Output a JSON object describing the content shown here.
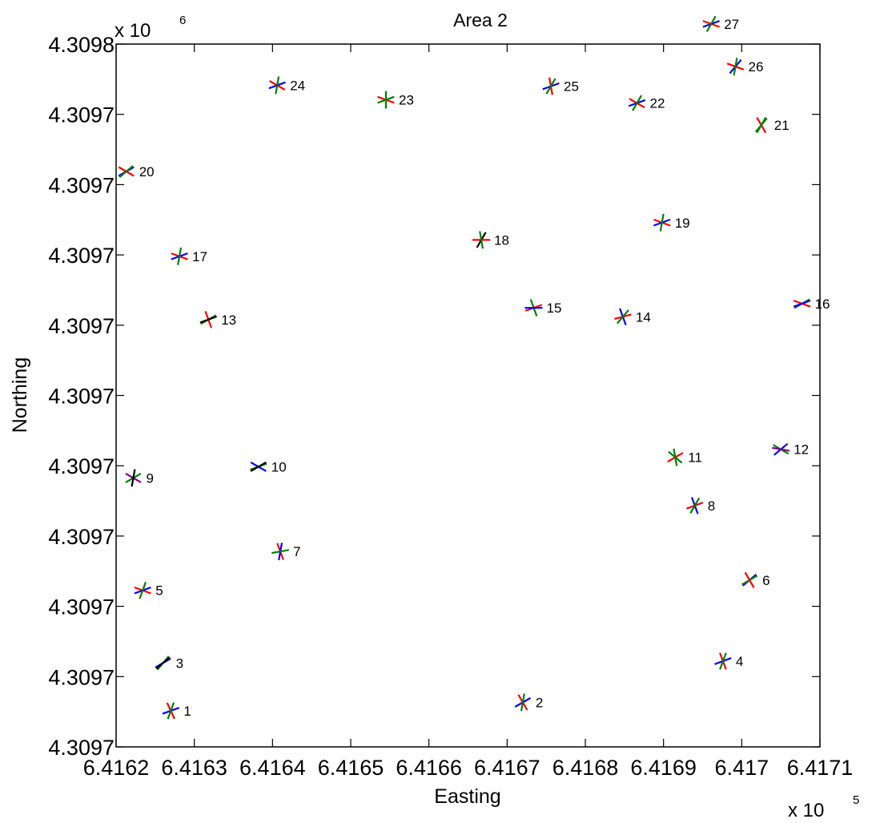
{
  "chart_data": {
    "type": "scatter",
    "title": "Area 2",
    "xlabel": "Easting",
    "ylabel": "Northing",
    "x_multiplier": "x 10",
    "x_multiplier_exp": "5",
    "y_multiplier": "x 10",
    "y_multiplier_exp": "6",
    "xlim": [
      6.4162,
      6.4171
    ],
    "ylim": [
      4.30965,
      4.3098
    ],
    "x_ticks": [
      6.4162,
      6.4163,
      6.4164,
      6.4165,
      6.4166,
      6.4167,
      6.4168,
      6.4169,
      6.417,
      6.4171
    ],
    "x_tick_labels": [
      "6.4162",
      "6.4163",
      "6.4164",
      "6.4165",
      "6.4166",
      "6.4167",
      "6.4168",
      "6.4169",
      "6.417",
      "6.4171"
    ],
    "y_ticks": [
      4.30965,
      4.309665,
      4.30968,
      4.309695,
      4.30971,
      4.309725,
      4.30974,
      4.309755,
      4.30977,
      4.309785,
      4.3098
    ],
    "y_tick_labels": [
      "4.3097",
      "4.3097",
      "4.3097",
      "4.3097",
      "4.3097",
      "4.3097",
      "4.3097",
      "4.3097",
      "4.3097",
      "4.3097",
      "4.3098"
    ],
    "grid": false,
    "legend": "none",
    "marker_colors": {
      "red": "#ff0000",
      "blue": "#0000ff",
      "green": "#008000",
      "black": "#000000",
      "purple": "#800080"
    },
    "points": [
      {
        "label": "1",
        "x": 6.41627,
        "y": 4.3096577,
        "angles": [
          65,
          160,
          110
        ],
        "colors": [
          "red",
          "blue",
          "green"
        ]
      },
      {
        "label": "2",
        "x": 6.41672,
        "y": 4.3096595,
        "angles": [
          60,
          150,
          100
        ],
        "colors": [
          "red",
          "blue",
          "green"
        ]
      },
      {
        "label": "3",
        "x": 6.41626,
        "y": 4.3096679,
        "angles": [
          130,
          150,
          140
        ],
        "colors": [
          "green",
          "blue",
          "black"
        ]
      },
      {
        "label": "4",
        "x": 6.416976,
        "y": 4.3096683,
        "angles": [
          70,
          160,
          110
        ],
        "colors": [
          "red",
          "blue",
          "green"
        ]
      },
      {
        "label": "5",
        "x": 6.416234,
        "y": 4.3096834,
        "angles": [
          20,
          160,
          110
        ],
        "colors": [
          "red",
          "blue",
          "green"
        ]
      },
      {
        "label": "6",
        "x": 6.41701,
        "y": 4.3096856,
        "angles": [
          140,
          150,
          60
        ],
        "colors": [
          "blue",
          "green",
          "red"
        ]
      },
      {
        "label": "7",
        "x": 6.41641,
        "y": 4.3096917,
        "angles": [
          70,
          100,
          170
        ],
        "colors": [
          "red",
          "blue",
          "green"
        ]
      },
      {
        "label": "8",
        "x": 6.41694,
        "y": 4.3097015,
        "angles": [
          160,
          70,
          120
        ],
        "colors": [
          "red",
          "blue",
          "green"
        ]
      },
      {
        "label": "9",
        "x": 6.416222,
        "y": 4.3097074,
        "angles": [
          150,
          30,
          100
        ],
        "colors": [
          "green",
          "purple",
          "black"
        ]
      },
      {
        "label": "10",
        "x": 6.416382,
        "y": 4.3097098,
        "angles": [
          160,
          30,
          150
        ],
        "colors": [
          "green",
          "blue",
          "black"
        ]
      },
      {
        "label": "11",
        "x": 6.416915,
        "y": 4.3097118,
        "angles": [
          40,
          150,
          80
        ],
        "colors": [
          "green",
          "red",
          "green"
        ]
      },
      {
        "label": "12",
        "x": 6.41705,
        "y": 4.3097135,
        "angles": [
          140,
          30,
          10
        ],
        "colors": [
          "blue",
          "green",
          "purple"
        ]
      },
      {
        "label": "13",
        "x": 6.416318,
        "y": 4.3097412,
        "angles": [
          70,
          150,
          160
        ],
        "colors": [
          "red",
          "green",
          "black"
        ]
      },
      {
        "label": "14",
        "x": 6.416848,
        "y": 4.3097418,
        "angles": [
          70,
          165,
          130
        ],
        "colors": [
          "blue",
          "red",
          "green"
        ]
      },
      {
        "label": "15",
        "x": 6.416734,
        "y": 4.3097437,
        "angles": [
          70,
          160,
          0
        ],
        "colors": [
          "green",
          "red",
          "blue"
        ]
      },
      {
        "label": "16",
        "x": 6.417077,
        "y": 4.3097446,
        "angles": [
          20,
          150,
          160
        ],
        "colors": [
          "red",
          "green",
          "blue"
        ]
      },
      {
        "label": "17",
        "x": 6.416281,
        "y": 4.3097547,
        "angles": [
          20,
          160,
          100
        ],
        "colors": [
          "red",
          "blue",
          "green"
        ]
      },
      {
        "label": "18",
        "x": 6.416667,
        "y": 4.3097582,
        "angles": [
          0,
          120,
          80
        ],
        "colors": [
          "red",
          "black",
          "green"
        ]
      },
      {
        "label": "19",
        "x": 6.416898,
        "y": 4.3097619,
        "angles": [
          20,
          160,
          100
        ],
        "colors": [
          "red",
          "blue",
          "green"
        ]
      },
      {
        "label": "20",
        "x": 6.416213,
        "y": 4.3097728,
        "angles": [
          30,
          150,
          140
        ],
        "colors": [
          "red",
          "blue",
          "green"
        ]
      },
      {
        "label": "21",
        "x": 6.417025,
        "y": 4.3097827,
        "angles": [
          60,
          130,
          120
        ],
        "colors": [
          "red",
          "green",
          "green"
        ]
      },
      {
        "label": "22",
        "x": 6.416866,
        "y": 4.3097874,
        "angles": [
          30,
          160,
          120
        ],
        "colors": [
          "red",
          "blue",
          "green"
        ]
      },
      {
        "label": "23",
        "x": 6.416545,
        "y": 4.3097881,
        "angles": [
          20,
          160,
          90
        ],
        "colors": [
          "red",
          "green",
          "green"
        ]
      },
      {
        "label": "24",
        "x": 6.416406,
        "y": 4.3097912,
        "angles": [
          30,
          160,
          100
        ],
        "colors": [
          "red",
          "blue",
          "green"
        ]
      },
      {
        "label": "25",
        "x": 6.416756,
        "y": 4.309791,
        "angles": [
          80,
          160,
          120
        ],
        "colors": [
          "red",
          "blue",
          "green"
        ]
      },
      {
        "label": "26",
        "x": 6.416992,
        "y": 4.3097952,
        "angles": [
          20,
          130,
          100
        ],
        "colors": [
          "red",
          "blue",
          "green"
        ]
      },
      {
        "label": "27",
        "x": 6.416961,
        "y": 4.3098043,
        "angles": [
          20,
          160,
          120
        ],
        "colors": [
          "red",
          "blue",
          "green"
        ]
      }
    ]
  }
}
